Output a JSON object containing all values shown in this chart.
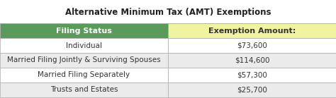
{
  "title": "Alternative Minimum Tax (AMT) Exemptions",
  "headers": [
    "Filing Status",
    "Exemption Amount:"
  ],
  "rows": [
    [
      "Individual",
      "$73,600"
    ],
    [
      "Married Filing Jointly & Surviving Spouses",
      "$114,600"
    ],
    [
      "Married Filing Separately",
      "$57,300"
    ],
    [
      "Trusts and Estates",
      "$25,700"
    ]
  ],
  "header_bg_left": "#5a9a5a",
  "header_bg_right": "#f0f4a0",
  "header_text_color_left": "#ffffff",
  "header_text_color_right": "#333333",
  "row_bg_odd": "#ffffff",
  "row_bg_even": "#ebebeb",
  "row_text_color": "#333333",
  "title_fontsize": 8.5,
  "header_fontsize": 8,
  "row_fontsize": 7.5,
  "col_split": 0.5,
  "border_color": "#aaaaaa",
  "title_fontweight": "bold",
  "header_fontweight": "bold"
}
